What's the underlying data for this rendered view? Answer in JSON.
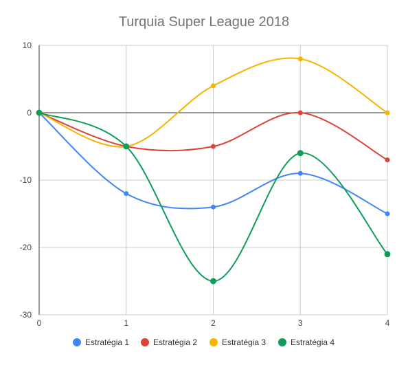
{
  "chart_data": {
    "type": "line",
    "title": "Turquia Super League 2018",
    "x": [
      0,
      1,
      2,
      3,
      4
    ],
    "x_ticks": [
      "0",
      "1",
      "2",
      "3",
      "4"
    ],
    "y_ticks": [
      "10",
      "0",
      "-10",
      "-20",
      "-30"
    ],
    "xlim": [
      0,
      4
    ],
    "ylim": [
      -30,
      10
    ],
    "grid": true,
    "smooth": true,
    "legend_position": "bottom",
    "series": [
      {
        "name": "Estratégia 1",
        "color": "#4285f4",
        "values": [
          0,
          -12,
          -14,
          -9,
          -15
        ]
      },
      {
        "name": "Estratégia 2",
        "color": "#db4437",
        "values": [
          0,
          -5,
          -5,
          0,
          -7
        ]
      },
      {
        "name": "Estratégia 3",
        "color": "#f4b400",
        "values": [
          0,
          -5,
          4,
          8,
          0
        ]
      },
      {
        "name": "Estratégia 4",
        "color": "#0f9d58",
        "values": [
          0,
          -5,
          -25,
          -6,
          -21
        ]
      }
    ]
  }
}
